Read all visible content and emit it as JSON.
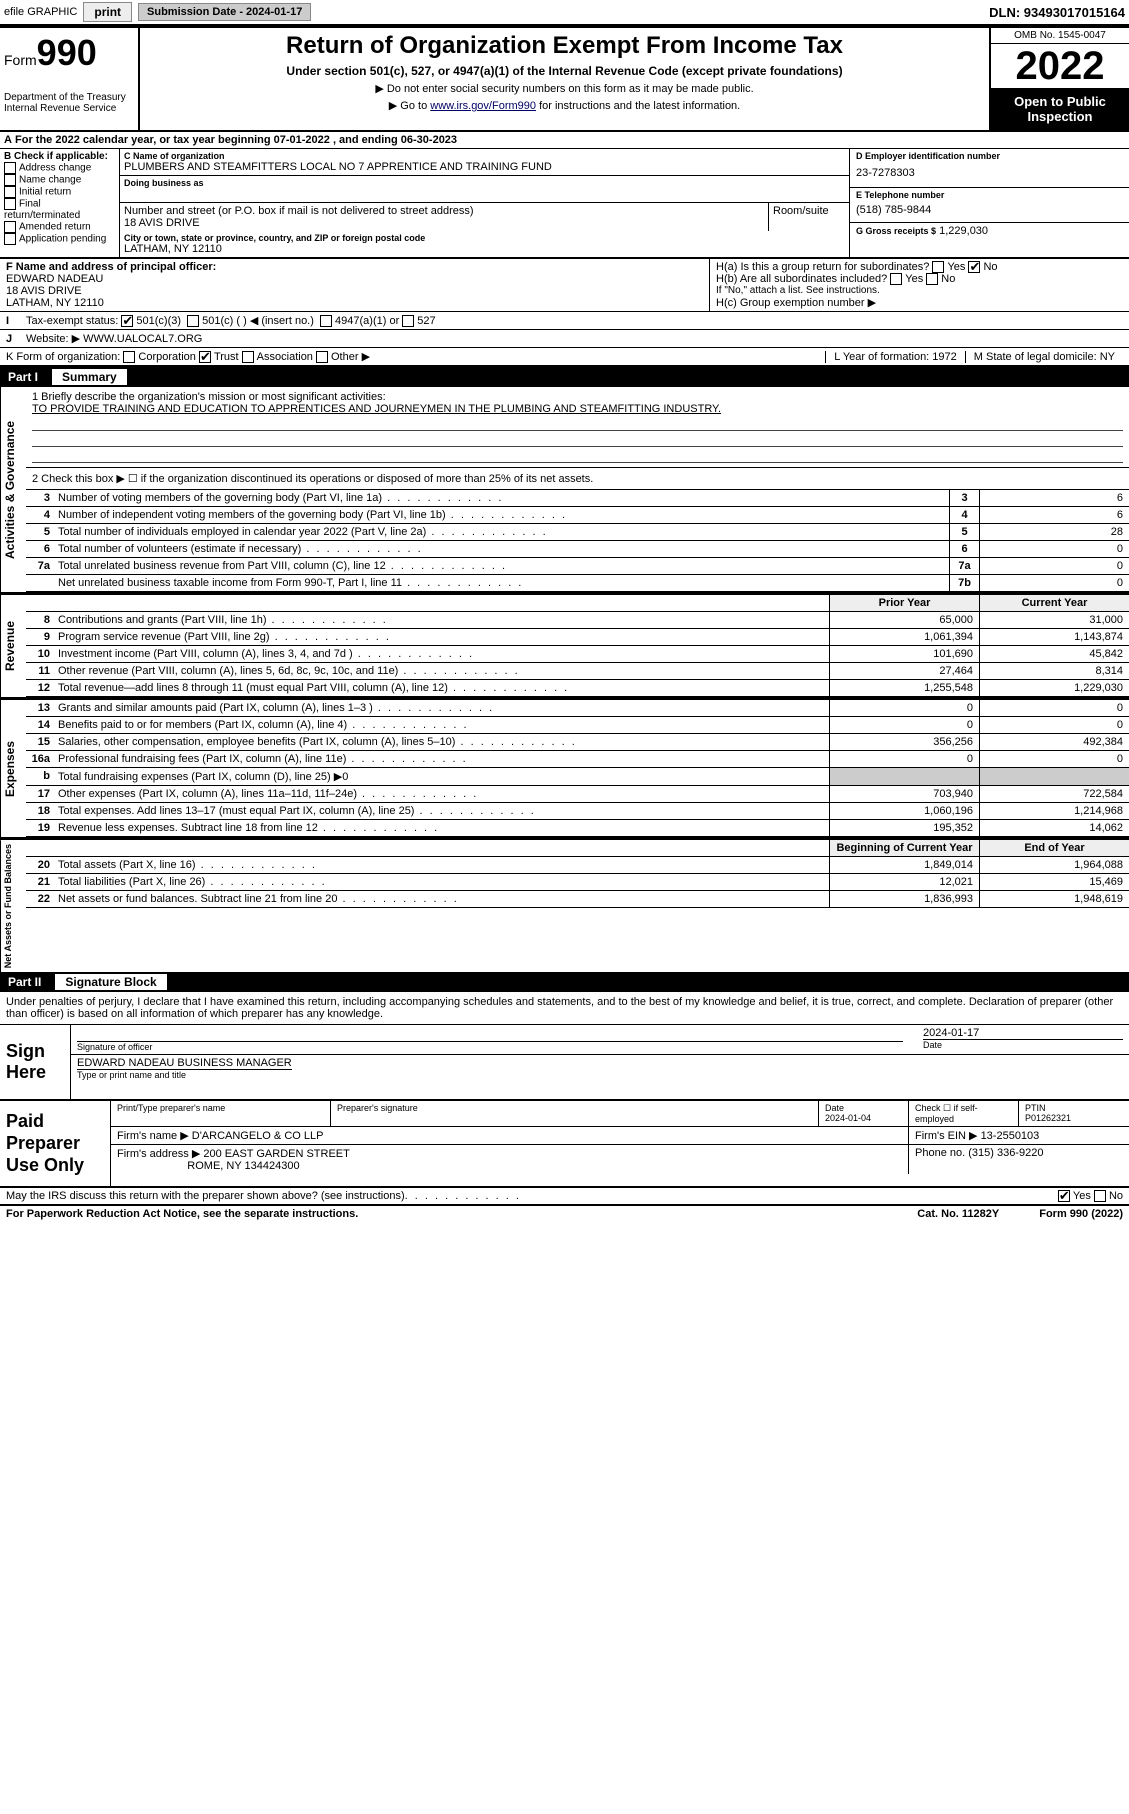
{
  "topbar": {
    "efile": "efile GRAPHIC",
    "print": "print",
    "subdate_lbl": "Submission Date - 2024-01-17",
    "dln": "DLN: 93493017015164"
  },
  "header": {
    "form_word": "Form",
    "form_num": "990",
    "dept": "Department of the Treasury\nInternal Revenue Service",
    "title": "Return of Organization Exempt From Income Tax",
    "sub": "Under section 501(c), 527, or 4947(a)(1) of the Internal Revenue Code (except private foundations)",
    "note1": "▶ Do not enter social security numbers on this form as it may be made public.",
    "note2_pre": "▶ Go to ",
    "note2_link": "www.irs.gov/Form990",
    "note2_post": " for instructions and the latest information.",
    "omb": "OMB No. 1545-0047",
    "year": "2022",
    "open": "Open to Public Inspection"
  },
  "A": {
    "text": "For the 2022 calendar year, or tax year beginning 07-01-2022   , and ending 06-30-2023"
  },
  "B": {
    "hdr": "B Check if applicable:",
    "opts": [
      "Address change",
      "Name change",
      "Initial return",
      "Final return/terminated",
      "Amended return",
      "Application pending"
    ]
  },
  "C": {
    "name_lbl": "C Name of organization",
    "name": "PLUMBERS AND STEAMFITTERS LOCAL NO 7 APPRENTICE AND TRAINING FUND",
    "dba_lbl": "Doing business as",
    "street_lbl": "Number and street (or P.O. box if mail is not delivered to street address)",
    "street": "18 AVIS DRIVE",
    "suite_lbl": "Room/suite",
    "city_lbl": "City or town, state or province, country, and ZIP or foreign postal code",
    "city": "LATHAM, NY  12110"
  },
  "D": {
    "ein_lbl": "D Employer identification number",
    "ein": "23-7278303",
    "tel_lbl": "E Telephone number",
    "tel": "(518) 785-9844",
    "gross_lbl": "G Gross receipts $",
    "gross": "1,229,030"
  },
  "F": {
    "lbl": "F  Name and address of principal officer:",
    "name": "EDWARD NADEAU",
    "addr1": "18 AVIS DRIVE",
    "addr2": "LATHAM, NY  12110"
  },
  "H": {
    "a": "H(a)  Is this a group return for subordinates?",
    "b": "H(b)  Are all subordinates included?",
    "bnote": "If \"No,\" attach a list. See instructions.",
    "c": "H(c)  Group exemption number ▶"
  },
  "I": {
    "lbl": "I",
    "txt": "Tax-exempt status:",
    "c3": "501(c)(3)",
    "c": "501(c) (   ) ◀ (insert no.)",
    "a1": "4947(a)(1) or",
    "s527": "527"
  },
  "J": {
    "lbl": "J",
    "txt": "Website: ▶",
    "val": "WWW.UALOCAL7.ORG"
  },
  "K": {
    "txt": "K Form of organization:",
    "corp": "Corporation",
    "trust": "Trust",
    "assoc": "Association",
    "other": "Other ▶"
  },
  "L": {
    "txt": "L Year of formation: 1972"
  },
  "M": {
    "txt": "M State of legal domicile: NY"
  },
  "partI": {
    "part": "Part I",
    "title": "Summary"
  },
  "mission": {
    "lbl": "1   Briefly describe the organization's mission or most significant activities:",
    "val": "TO PROVIDE TRAINING AND EDUCATION TO APPRENTICES AND JOURNEYMEN IN THE PLUMBING AND STEAMFITTING INDUSTRY."
  },
  "line2": "2   Check this box ▶ ☐  if the organization discontinued its operations or disposed of more than 25% of its net assets.",
  "gov_rows": [
    {
      "n": "3",
      "t": "Number of voting members of the governing body (Part VI, line 1a)",
      "b": "3",
      "v": "6"
    },
    {
      "n": "4",
      "t": "Number of independent voting members of the governing body (Part VI, line 1b)",
      "b": "4",
      "v": "6"
    },
    {
      "n": "5",
      "t": "Total number of individuals employed in calendar year 2022 (Part V, line 2a)",
      "b": "5",
      "v": "28"
    },
    {
      "n": "6",
      "t": "Total number of volunteers (estimate if necessary)",
      "b": "6",
      "v": "0"
    },
    {
      "n": "7a",
      "t": "Total unrelated business revenue from Part VIII, column (C), line 12",
      "b": "7a",
      "v": "0"
    },
    {
      "n": "",
      "t": "Net unrelated business taxable income from Form 990-T, Part I, line 11",
      "b": "7b",
      "v": "0"
    }
  ],
  "col_hdr": {
    "py": "Prior Year",
    "cy": "Current Year"
  },
  "rev_rows": [
    {
      "n": "8",
      "t": "Contributions and grants (Part VIII, line 1h)",
      "py": "65,000",
      "cy": "31,000"
    },
    {
      "n": "9",
      "t": "Program service revenue (Part VIII, line 2g)",
      "py": "1,061,394",
      "cy": "1,143,874"
    },
    {
      "n": "10",
      "t": "Investment income (Part VIII, column (A), lines 3, 4, and 7d )",
      "py": "101,690",
      "cy": "45,842"
    },
    {
      "n": "11",
      "t": "Other revenue (Part VIII, column (A), lines 5, 6d, 8c, 9c, 10c, and 11e)",
      "py": "27,464",
      "cy": "8,314"
    },
    {
      "n": "12",
      "t": "Total revenue—add lines 8 through 11 (must equal Part VIII, column (A), line 12)",
      "py": "1,255,548",
      "cy": "1,229,030"
    }
  ],
  "exp_rows": [
    {
      "n": "13",
      "t": "Grants and similar amounts paid (Part IX, column (A), lines 1–3 )",
      "py": "0",
      "cy": "0"
    },
    {
      "n": "14",
      "t": "Benefits paid to or for members (Part IX, column (A), line 4)",
      "py": "0",
      "cy": "0"
    },
    {
      "n": "15",
      "t": "Salaries, other compensation, employee benefits (Part IX, column (A), lines 5–10)",
      "py": "356,256",
      "cy": "492,384"
    },
    {
      "n": "16a",
      "t": "Professional fundraising fees (Part IX, column (A), line 11e)",
      "py": "0",
      "cy": "0"
    },
    {
      "n": "b",
      "t": "Total fundraising expenses (Part IX, column (D), line 25)  ▶0",
      "py": "",
      "cy": ""
    },
    {
      "n": "17",
      "t": "Other expenses (Part IX, column (A), lines 11a–11d, 11f–24e)",
      "py": "703,940",
      "cy": "722,584"
    },
    {
      "n": "18",
      "t": "Total expenses. Add lines 13–17 (must equal Part IX, column (A), line 25)",
      "py": "1,060,196",
      "cy": "1,214,968"
    },
    {
      "n": "19",
      "t": "Revenue less expenses. Subtract line 18 from line 12",
      "py": "195,352",
      "cy": "14,062"
    }
  ],
  "na_hdr": {
    "py": "Beginning of Current Year",
    "cy": "End of Year"
  },
  "na_rows": [
    {
      "n": "20",
      "t": "Total assets (Part X, line 16)",
      "py": "1,849,014",
      "cy": "1,964,088"
    },
    {
      "n": "21",
      "t": "Total liabilities (Part X, line 26)",
      "py": "12,021",
      "cy": "15,469"
    },
    {
      "n": "22",
      "t": "Net assets or fund balances. Subtract line 21 from line 20",
      "py": "1,836,993",
      "cy": "1,948,619"
    }
  ],
  "partII": {
    "part": "Part II",
    "title": "Signature Block"
  },
  "sigtxt": "Under penalties of perjury, I declare that I have examined this return, including accompanying schedules and statements, and to the best of my knowledge and belief, it is true, correct, and complete. Declaration of preparer (other than officer) is based on all information of which preparer has any knowledge.",
  "sign": {
    "here": "Sign Here",
    "sigoff": "Signature of officer",
    "date": "2024-01-17",
    "datel": "Date",
    "name": "EDWARD NADEAU  BUSINESS MANAGER",
    "namel": "Type or print name and title"
  },
  "paid": {
    "hdr": "Paid Preparer Use Only",
    "c1": "Print/Type preparer's name",
    "c2": "Preparer's signature",
    "c3": "Date",
    "c3v": "2024-01-04",
    "c4": "Check ☐ if self-employed",
    "c5": "PTIN",
    "c5v": "P01262321",
    "firm": "Firm's name    ▶",
    "firmv": "D'ARCANGELO & CO LLP",
    "ein": "Firm's EIN ▶",
    "einv": "13-2550103",
    "addr": "Firm's address ▶",
    "addrv": "200 EAST GARDEN STREET",
    "addrv2": "ROME, NY  134424300",
    "ph": "Phone no.",
    "phv": "(315) 336-9220"
  },
  "footer": {
    "q": "May the IRS discuss this return with the preparer shown above? (see instructions)",
    "yes": "Yes",
    "no": "No",
    "pra": "For Paperwork Reduction Act Notice, see the separate instructions.",
    "cat": "Cat. No. 11282Y",
    "form": "Form 990 (2022)"
  },
  "sidelabels": {
    "gov": "Activities & Governance",
    "rev": "Revenue",
    "exp": "Expenses",
    "na": "Net Assets or Fund Balances"
  }
}
